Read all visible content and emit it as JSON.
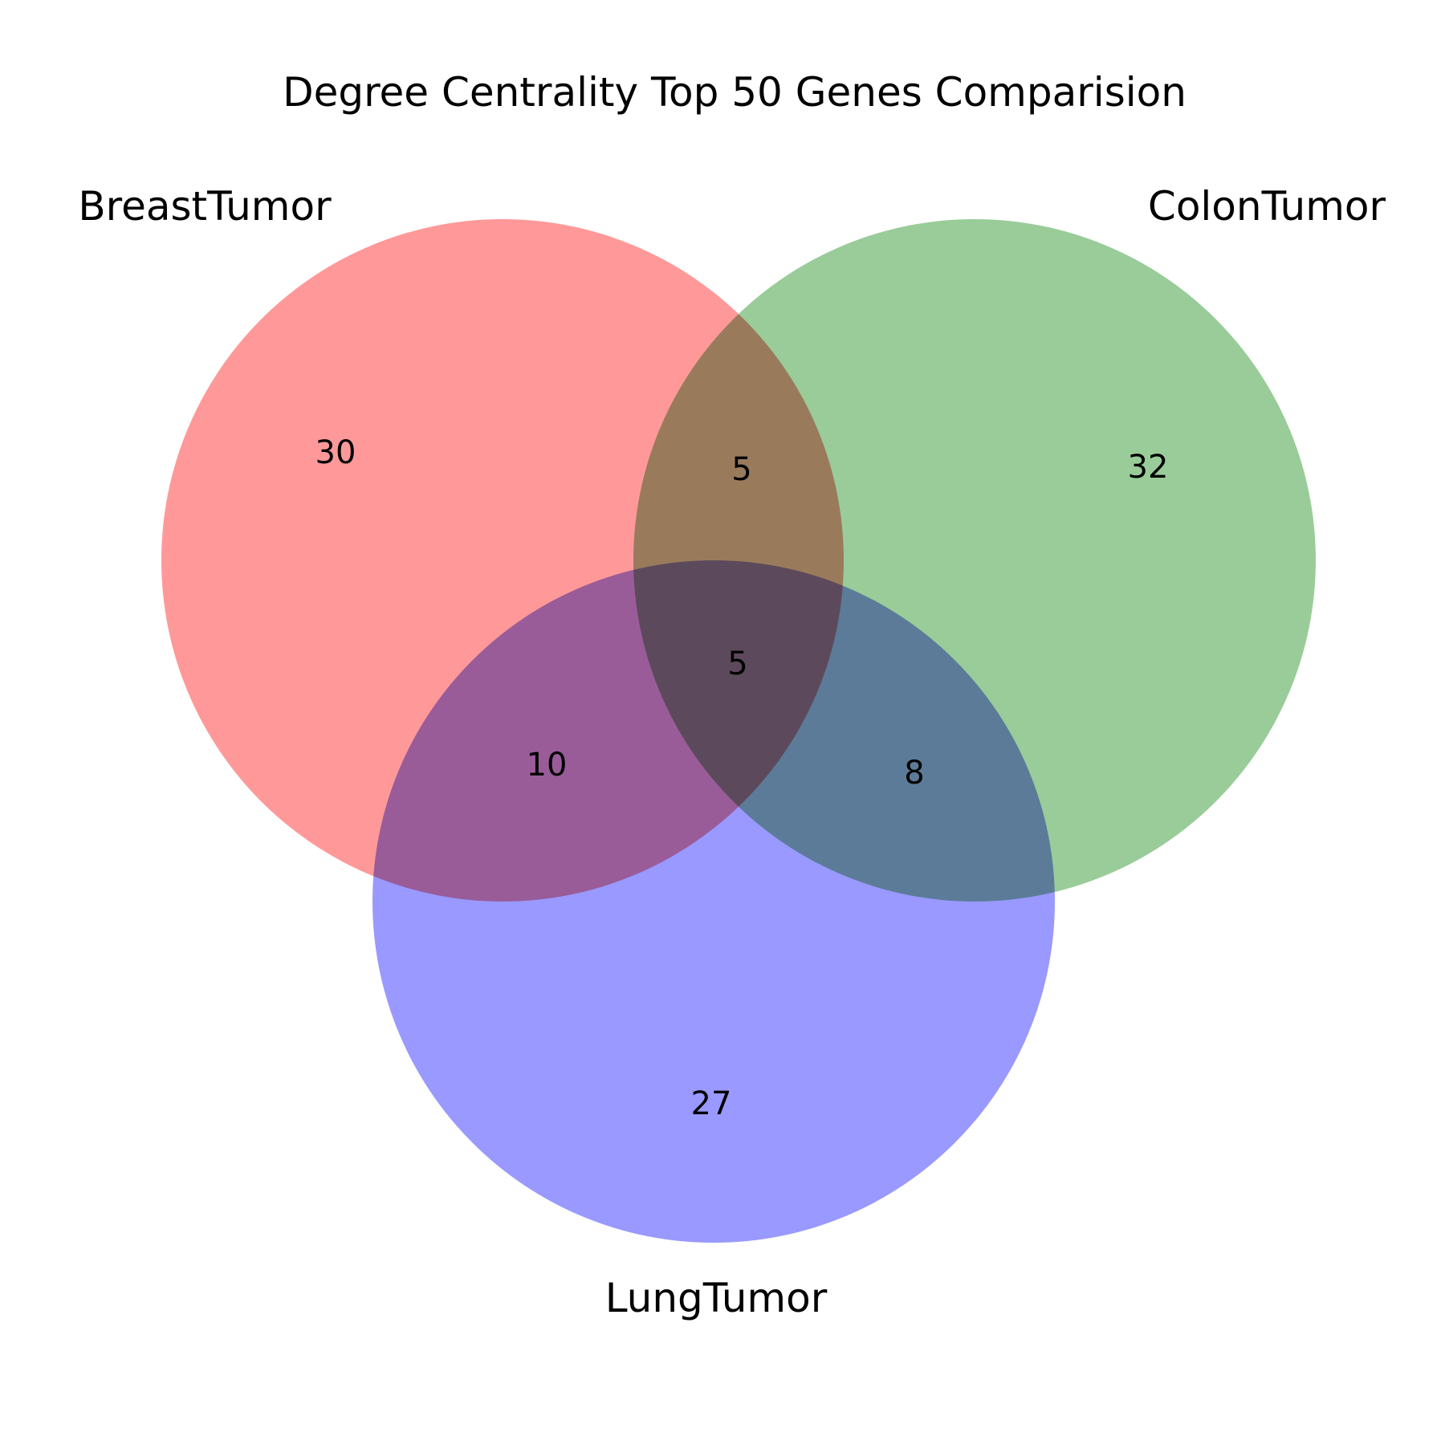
{
  "title": "Degree Centrality Top 50 Genes Comparision",
  "sets": [
    {
      "key": "breast",
      "label": "BreastTumor",
      "color": "#ff0000"
    },
    {
      "key": "colon",
      "label": "ColonTumor",
      "color": "#008000"
    },
    {
      "key": "lung",
      "label": "LungTumor",
      "color": "#0000ff"
    }
  ],
  "regions": {
    "breast_only": "30",
    "colon_only": "32",
    "lung_only": "27",
    "breast_colon": "5",
    "breast_lung": "10",
    "colon_lung": "8",
    "all_three": "5"
  }
}
